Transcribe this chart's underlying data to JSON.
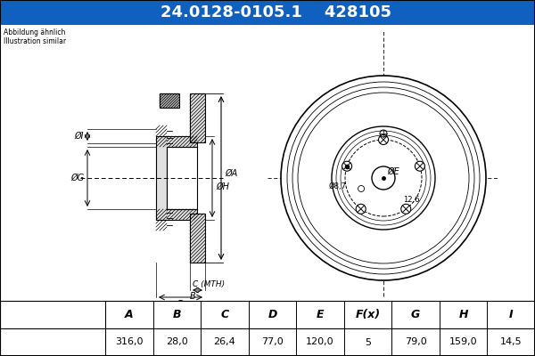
{
  "title_part": "24.0128-0105.1",
  "title_code": "428105",
  "subtitle1": "Abbildung ähnlich",
  "subtitle2": "Illustration similar",
  "header_bg": "#1060c0",
  "header_text_color": "#ffffff",
  "bg_color": "#ffffff",
  "diagram_bg": "#ffffff",
  "columns": [
    "A",
    "B",
    "C",
    "D",
    "E",
    "F(x)",
    "G",
    "H",
    "I"
  ],
  "values": [
    "316,0",
    "28,0",
    "26,4",
    "77,0",
    "120,0",
    "5",
    "79,0",
    "159,0",
    "14,5"
  ],
  "n_bolts": 5,
  "bolt_hole_d": "8,7",
  "pitch_d": "12,6"
}
